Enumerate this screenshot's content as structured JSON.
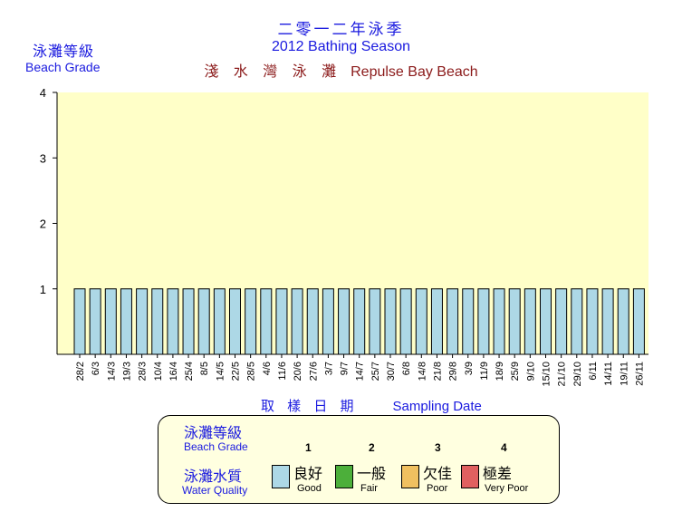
{
  "header": {
    "title_zh": "二零一二年泳季",
    "title_en": "2012 Bathing Season",
    "beach_zh": "淺 水 灣 泳 灘",
    "beach_en": "Repulse Bay Beach"
  },
  "colors": {
    "title": "#1a1adf",
    "beach_name": "#8b1a1a",
    "plot_bg": "#ffffc8",
    "bar_fill": "#add8e6",
    "legend_bg": "#ffffe0"
  },
  "chart_data": {
    "type": "bar",
    "title": "2012 Bathing Season",
    "ylabel_zh": "泳灘等級",
    "ylabel_en": "Beach Grade",
    "xlabel_zh": "取 樣 日 期",
    "xlabel_en": "Sampling  Date",
    "ylim": [
      0,
      4
    ],
    "yticks": [
      1,
      2,
      3,
      4
    ],
    "grid": false,
    "categories": [
      "28/2",
      "6/3",
      "14/3",
      "19/3",
      "28/3",
      "10/4",
      "16/4",
      "25/4",
      "8/5",
      "14/5",
      "22/5",
      "28/5",
      "4/6",
      "11/6",
      "20/6",
      "27/6",
      "3/7",
      "9/7",
      "14/7",
      "25/7",
      "30/7",
      "6/8",
      "14/8",
      "21/8",
      "29/8",
      "3/9",
      "11/9",
      "18/9",
      "25/9",
      "9/10",
      "15/10",
      "21/10",
      "29/10",
      "6/11",
      "14/11",
      "19/11",
      "26/11"
    ],
    "values": [
      1,
      1,
      1,
      1,
      1,
      1,
      1,
      1,
      1,
      1,
      1,
      1,
      1,
      1,
      1,
      1,
      1,
      1,
      1,
      1,
      1,
      1,
      1,
      1,
      1,
      1,
      1,
      1,
      1,
      1,
      1,
      1,
      1,
      1,
      1,
      1,
      1
    ]
  },
  "legend": {
    "grade_zh": "泳灘等級",
    "grade_en": "Beach Grade",
    "quality_zh": "泳灘水質",
    "quality_en": "Water Quality",
    "items": [
      {
        "num": "1",
        "zh": "良好",
        "en": "Good",
        "color": "#add8e6"
      },
      {
        "num": "2",
        "zh": "一般",
        "en": "Fair",
        "color": "#4caf3a"
      },
      {
        "num": "3",
        "zh": "欠佳",
        "en": "Poor",
        "color": "#f0c060"
      },
      {
        "num": "4",
        "zh": "極差",
        "en": "Very Poor",
        "color": "#e06060"
      }
    ]
  }
}
